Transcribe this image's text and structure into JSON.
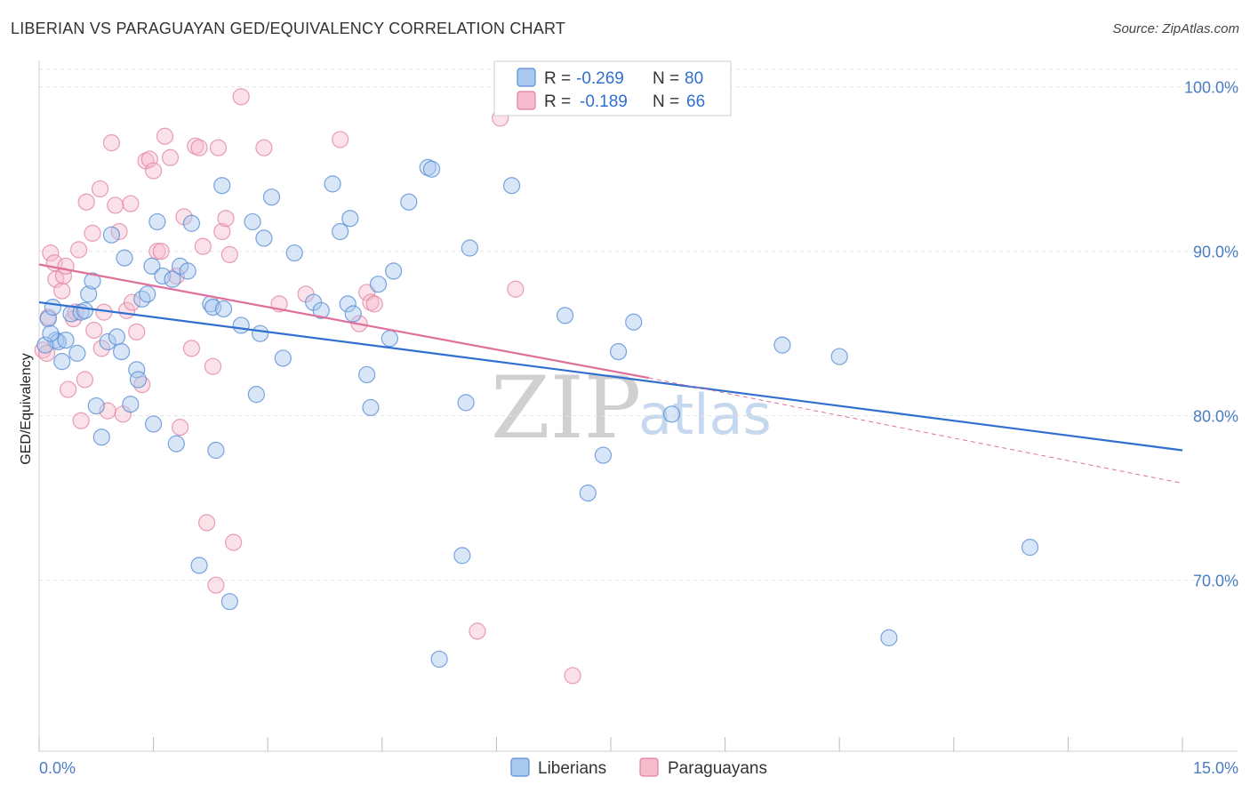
{
  "title": "LIBERIAN VS PARAGUAYAN GED/EQUIVALENCY CORRELATION CHART",
  "source": "Source: ZipAtlas.com",
  "watermark": {
    "part1": "ZIP",
    "part2": "atlas"
  },
  "legend": {
    "rows": [
      {
        "r_label": "R =",
        "r_value": "-0.269",
        "n_label": "N =",
        "n_value": "80"
      },
      {
        "r_label": "R =",
        "r_value": "-0.189",
        "n_label": "N =",
        "n_value": "66"
      }
    ]
  },
  "bottom_legend": {
    "liberians": "Liberians",
    "paraguayans": "Paraguayans"
  },
  "colors": {
    "blue_fill": "#a9c8ee",
    "blue_stroke": "#5a8fd6",
    "blue_line": "#2f6fd0",
    "pink_fill": "#f6bccd",
    "pink_stroke": "#e07fa0",
    "pink_line": "#e0709a",
    "axis_label": "#4a7cc4",
    "grid": "#e3e3e3"
  },
  "chart_data": {
    "type": "scatter",
    "title": "LIBERIAN VS PARAGUAYAN GED/EQUIVALENCY CORRELATION CHART",
    "xlabel": "",
    "ylabel": "GED/Equivalency",
    "xlim": [
      0,
      15
    ],
    "ylim": [
      59.6,
      101.5
    ],
    "x_tick_labels": [
      "0.0%",
      "15.0%"
    ],
    "y_ticks": [
      {
        "value": 100,
        "label": "100.0%"
      },
      {
        "value": 90,
        "label": "90.0%"
      },
      {
        "value": 80,
        "label": "80.0%"
      },
      {
        "value": 70,
        "label": "70.0%"
      }
    ],
    "series": [
      {
        "name": "Liberians",
        "r": -0.269,
        "n": 80,
        "trend": {
          "x": [
            0,
            15
          ],
          "y": [
            86.9,
            77.9
          ]
        },
        "points": [
          [
            0.12,
            85.9
          ],
          [
            0.18,
            86.6
          ],
          [
            0.22,
            84.6
          ],
          [
            0.25,
            84.5
          ],
          [
            0.3,
            83.3
          ],
          [
            0.35,
            84.6
          ],
          [
            0.42,
            86.2
          ],
          [
            0.5,
            83.8
          ],
          [
            0.55,
            86.3
          ],
          [
            0.6,
            86.4
          ],
          [
            0.65,
            87.4
          ],
          [
            0.7,
            88.2
          ],
          [
            0.75,
            80.6
          ],
          [
            0.82,
            78.7
          ],
          [
            0.9,
            84.5
          ],
          [
            0.95,
            91.0
          ],
          [
            1.02,
            84.8
          ],
          [
            1.08,
            83.9
          ],
          [
            1.12,
            89.6
          ],
          [
            1.2,
            80.7
          ],
          [
            1.28,
            82.8
          ],
          [
            1.3,
            82.2
          ],
          [
            1.35,
            87.1
          ],
          [
            1.42,
            87.4
          ],
          [
            1.48,
            89.1
          ],
          [
            1.5,
            79.5
          ],
          [
            1.55,
            91.8
          ],
          [
            1.62,
            88.5
          ],
          [
            1.75,
            88.3
          ],
          [
            1.8,
            78.3
          ],
          [
            1.85,
            89.1
          ],
          [
            1.95,
            88.8
          ],
          [
            2.0,
            91.7
          ],
          [
            2.1,
            70.9
          ],
          [
            2.25,
            86.8
          ],
          [
            2.28,
            86.6
          ],
          [
            2.32,
            77.9
          ],
          [
            2.4,
            94.0
          ],
          [
            2.42,
            86.5
          ],
          [
            2.5,
            68.7
          ],
          [
            2.65,
            85.5
          ],
          [
            2.8,
            91.8
          ],
          [
            2.85,
            81.3
          ],
          [
            2.9,
            85.0
          ],
          [
            2.95,
            90.8
          ],
          [
            3.05,
            93.3
          ],
          [
            3.2,
            83.5
          ],
          [
            3.35,
            89.9
          ],
          [
            3.6,
            86.9
          ],
          [
            3.7,
            86.4
          ],
          [
            3.85,
            94.1
          ],
          [
            3.95,
            91.2
          ],
          [
            4.05,
            86.8
          ],
          [
            4.08,
            92.0
          ],
          [
            4.12,
            86.2
          ],
          [
            4.3,
            82.5
          ],
          [
            4.35,
            80.5
          ],
          [
            4.45,
            88.0
          ],
          [
            4.6,
            84.7
          ],
          [
            4.65,
            88.8
          ],
          [
            4.85,
            93.0
          ],
          [
            5.1,
            95.1
          ],
          [
            5.15,
            95.0
          ],
          [
            5.25,
            65.2
          ],
          [
            5.55,
            71.5
          ],
          [
            5.6,
            80.8
          ],
          [
            5.65,
            90.2
          ],
          [
            6.2,
            94.0
          ],
          [
            6.9,
            86.1
          ],
          [
            7.2,
            75.3
          ],
          [
            7.4,
            77.6
          ],
          [
            7.6,
            83.9
          ],
          [
            7.8,
            85.7
          ],
          [
            8.3,
            80.1
          ],
          [
            9.75,
            84.3
          ],
          [
            10.5,
            83.6
          ],
          [
            11.15,
            66.5
          ],
          [
            13.0,
            72.0
          ],
          [
            0.08,
            84.3
          ],
          [
            0.15,
            85.0
          ]
        ]
      },
      {
        "name": "Paraguayans",
        "r": -0.189,
        "n": 66,
        "trend": {
          "x": [
            0,
            8.0
          ],
          "y": [
            89.2,
            82.3
          ]
        },
        "trend_dashed": {
          "x": [
            8.0,
            15
          ],
          "y": [
            82.3,
            75.9
          ]
        },
        "points": [
          [
            0.05,
            84.0
          ],
          [
            0.1,
            83.8
          ],
          [
            0.12,
            86.0
          ],
          [
            0.15,
            89.9
          ],
          [
            0.2,
            89.3
          ],
          [
            0.22,
            88.3
          ],
          [
            0.3,
            87.6
          ],
          [
            0.32,
            88.5
          ],
          [
            0.35,
            89.1
          ],
          [
            0.38,
            81.6
          ],
          [
            0.45,
            85.9
          ],
          [
            0.48,
            86.3
          ],
          [
            0.52,
            90.1
          ],
          [
            0.55,
            79.7
          ],
          [
            0.6,
            82.2
          ],
          [
            0.62,
            93.0
          ],
          [
            0.7,
            91.1
          ],
          [
            0.72,
            85.2
          ],
          [
            0.8,
            93.8
          ],
          [
            0.82,
            84.1
          ],
          [
            0.85,
            86.3
          ],
          [
            0.9,
            80.3
          ],
          [
            0.95,
            96.6
          ],
          [
            1.0,
            92.8
          ],
          [
            1.05,
            91.2
          ],
          [
            1.1,
            80.1
          ],
          [
            1.15,
            86.4
          ],
          [
            1.2,
            92.9
          ],
          [
            1.22,
            86.9
          ],
          [
            1.28,
            85.1
          ],
          [
            1.35,
            81.9
          ],
          [
            1.4,
            95.5
          ],
          [
            1.45,
            95.6
          ],
          [
            1.5,
            94.9
          ],
          [
            1.55,
            90.0
          ],
          [
            1.6,
            90.0
          ],
          [
            1.65,
            97.0
          ],
          [
            1.72,
            95.7
          ],
          [
            1.8,
            88.5
          ],
          [
            1.85,
            79.3
          ],
          [
            1.9,
            92.1
          ],
          [
            2.0,
            84.1
          ],
          [
            2.05,
            96.4
          ],
          [
            2.1,
            96.3
          ],
          [
            2.15,
            90.3
          ],
          [
            2.2,
            73.5
          ],
          [
            2.28,
            83.0
          ],
          [
            2.32,
            69.7
          ],
          [
            2.35,
            96.3
          ],
          [
            2.4,
            91.2
          ],
          [
            2.45,
            92.0
          ],
          [
            2.5,
            89.8
          ],
          [
            2.55,
            72.3
          ],
          [
            2.65,
            99.4
          ],
          [
            2.95,
            96.3
          ],
          [
            3.15,
            86.8
          ],
          [
            3.5,
            87.4
          ],
          [
            3.95,
            96.8
          ],
          [
            4.2,
            85.6
          ],
          [
            4.3,
            87.5
          ],
          [
            4.35,
            86.9
          ],
          [
            4.4,
            86.8
          ],
          [
            5.75,
            66.9
          ],
          [
            6.05,
            98.1
          ],
          [
            6.25,
            87.7
          ],
          [
            7.0,
            64.2
          ]
        ]
      }
    ]
  }
}
